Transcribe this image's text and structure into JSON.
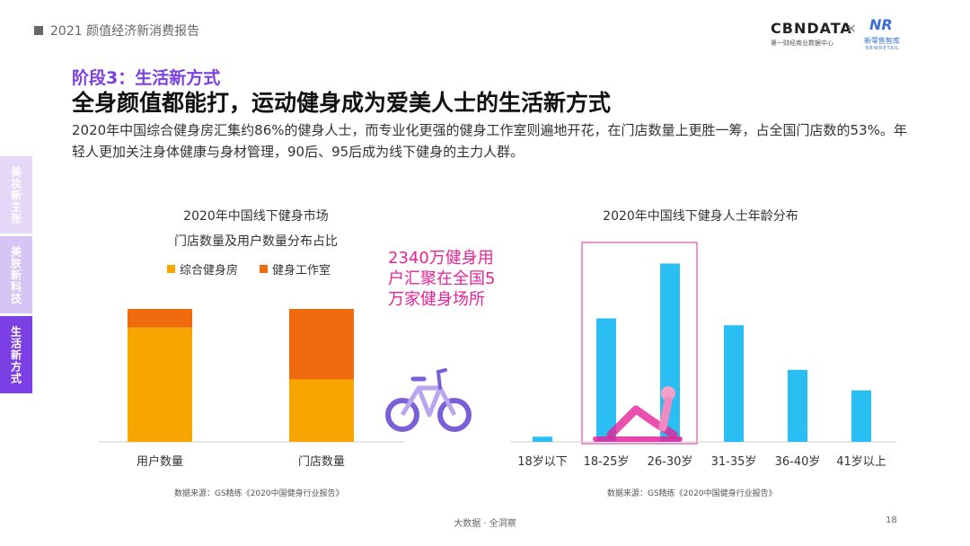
{
  "header": {
    "report_title": "2021 颜值经济新消费报告"
  },
  "brand": {
    "cbndata": "CBNDATA",
    "cbndata_sub": "第一财经商业数据中心",
    "times": "×",
    "partner_logo": "NR",
    "partner_name": "新零售智库",
    "partner_en": "NEWRETAIL"
  },
  "side_tabs": [
    "美妆新主张",
    "美肤新科技",
    "生活新方式"
  ],
  "stage_label": "阶段3：生活新方式",
  "headline": "全身颜值都能打，运动健身成为爱美人士的生活新方式",
  "description": "2020年中国综合健身房汇集约86%的健身人士，而专业化更强的健身工作室则遍地开花，在门店数量上更胜一筹，占全国门店数的53%。年轻人更加关注身体健康与身材管理，90后、95后成为线下健身的主力人群。",
  "callout": "2340万健身用户汇聚在全国5万家健身场所",
  "footer": "大数据 · 全洞察",
  "page_number": "18",
  "colors": {
    "accent": "#7b3fe4",
    "gym": "#f7a600",
    "studio": "#f06a0e",
    "age_bar": "#2bbef2",
    "highlight": "#e6249a"
  },
  "icons": [
    "bicycle-icon",
    "yoga-figure-illustration"
  ],
  "chart_data": [
    {
      "type": "bar",
      "stacked": true,
      "title": "2020年中国线下健身市场",
      "subtitle": "门店数量及用户数量分布占比",
      "categories": [
        "用户数量",
        "门店数量"
      ],
      "series": [
        {
          "name": "综合健身房",
          "values": [
            86,
            47
          ],
          "color": "#f7a600"
        },
        {
          "name": "健身工作室",
          "values": [
            14,
            53
          ],
          "color": "#f06a0e"
        }
      ],
      "ylim": [
        0,
        100
      ],
      "legend_position": "top",
      "grid": false,
      "source": "数据来源：GS精练《2020中国健身行业报告》"
    },
    {
      "type": "bar",
      "title": "2020年中国线下健身人士年龄分布",
      "categories": [
        "18岁以下",
        "18-25岁",
        "26-30岁",
        "31-35岁",
        "36-40岁",
        "41岁以上"
      ],
      "values": [
        1.5,
        36,
        52,
        34,
        21,
        15
      ],
      "ylim": [
        0,
        55
      ],
      "highlighted_categories": [
        "18-25岁",
        "26-30岁"
      ],
      "grid": false,
      "source": "数据来源：GS精练《2020中国健身行业报告》"
    }
  ]
}
